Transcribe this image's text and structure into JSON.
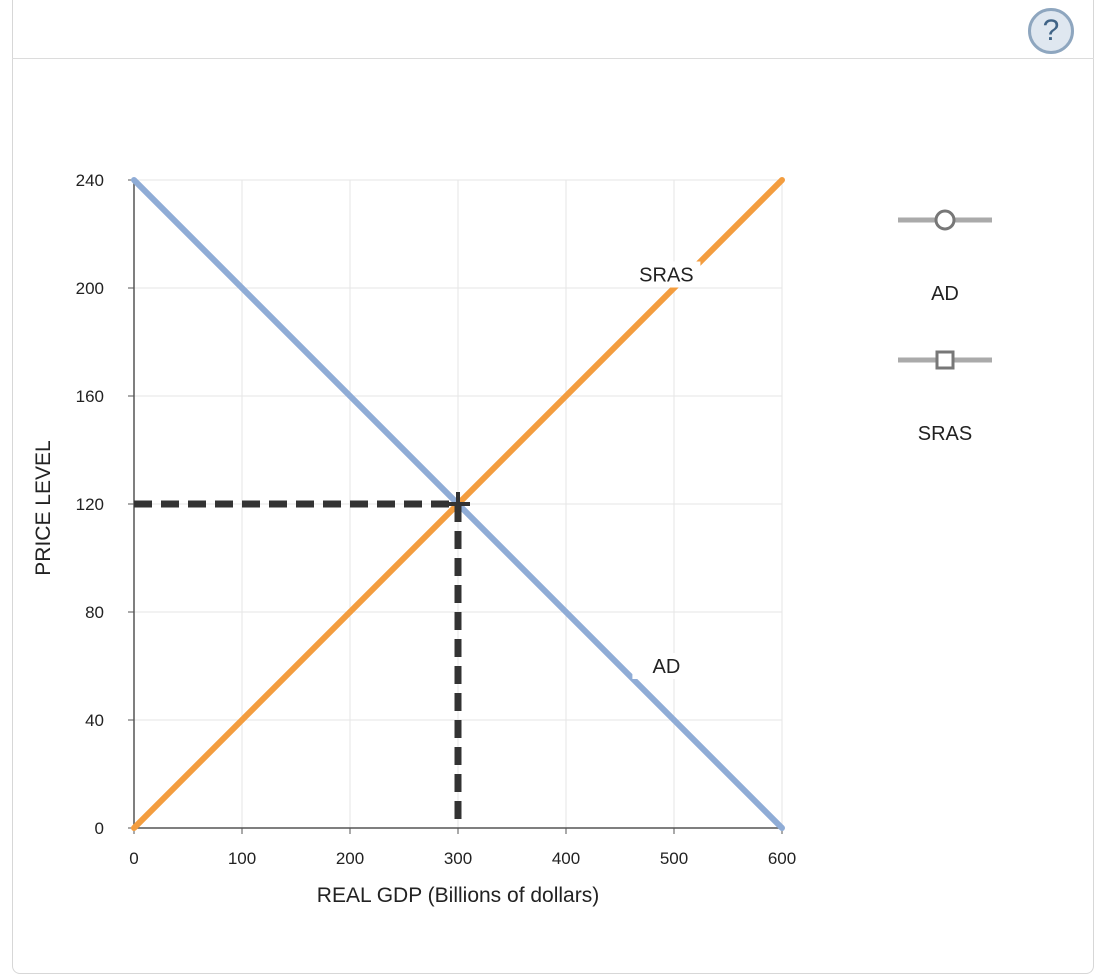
{
  "help": {
    "label": "?"
  },
  "chart_data": {
    "type": "line",
    "xlabel": "REAL GDP (Billions of dollars)",
    "ylabel": "PRICE LEVEL",
    "xlim": [
      0,
      600
    ],
    "ylim": [
      0,
      240
    ],
    "xticks": [
      "0",
      "100",
      "200",
      "300",
      "400",
      "500",
      "600"
    ],
    "yticks": [
      "0",
      "40",
      "80",
      "120",
      "160",
      "200",
      "240"
    ],
    "grid": true,
    "legend_position": "right",
    "series": [
      {
        "name": "AD",
        "color": "#8facd6",
        "points": [
          [
            0,
            240
          ],
          [
            600,
            0
          ]
        ],
        "label_at": [
          480,
          60
        ]
      },
      {
        "name": "SRAS",
        "color": "#f39d3f",
        "points": [
          [
            0,
            0
          ],
          [
            600,
            240
          ]
        ],
        "label_at": [
          480,
          205
        ]
      }
    ],
    "equilibrium": {
      "x": 300,
      "y": 120
    },
    "legend": [
      {
        "label": "AD",
        "marker": "circle"
      },
      {
        "label": "SRAS",
        "marker": "square"
      }
    ]
  }
}
